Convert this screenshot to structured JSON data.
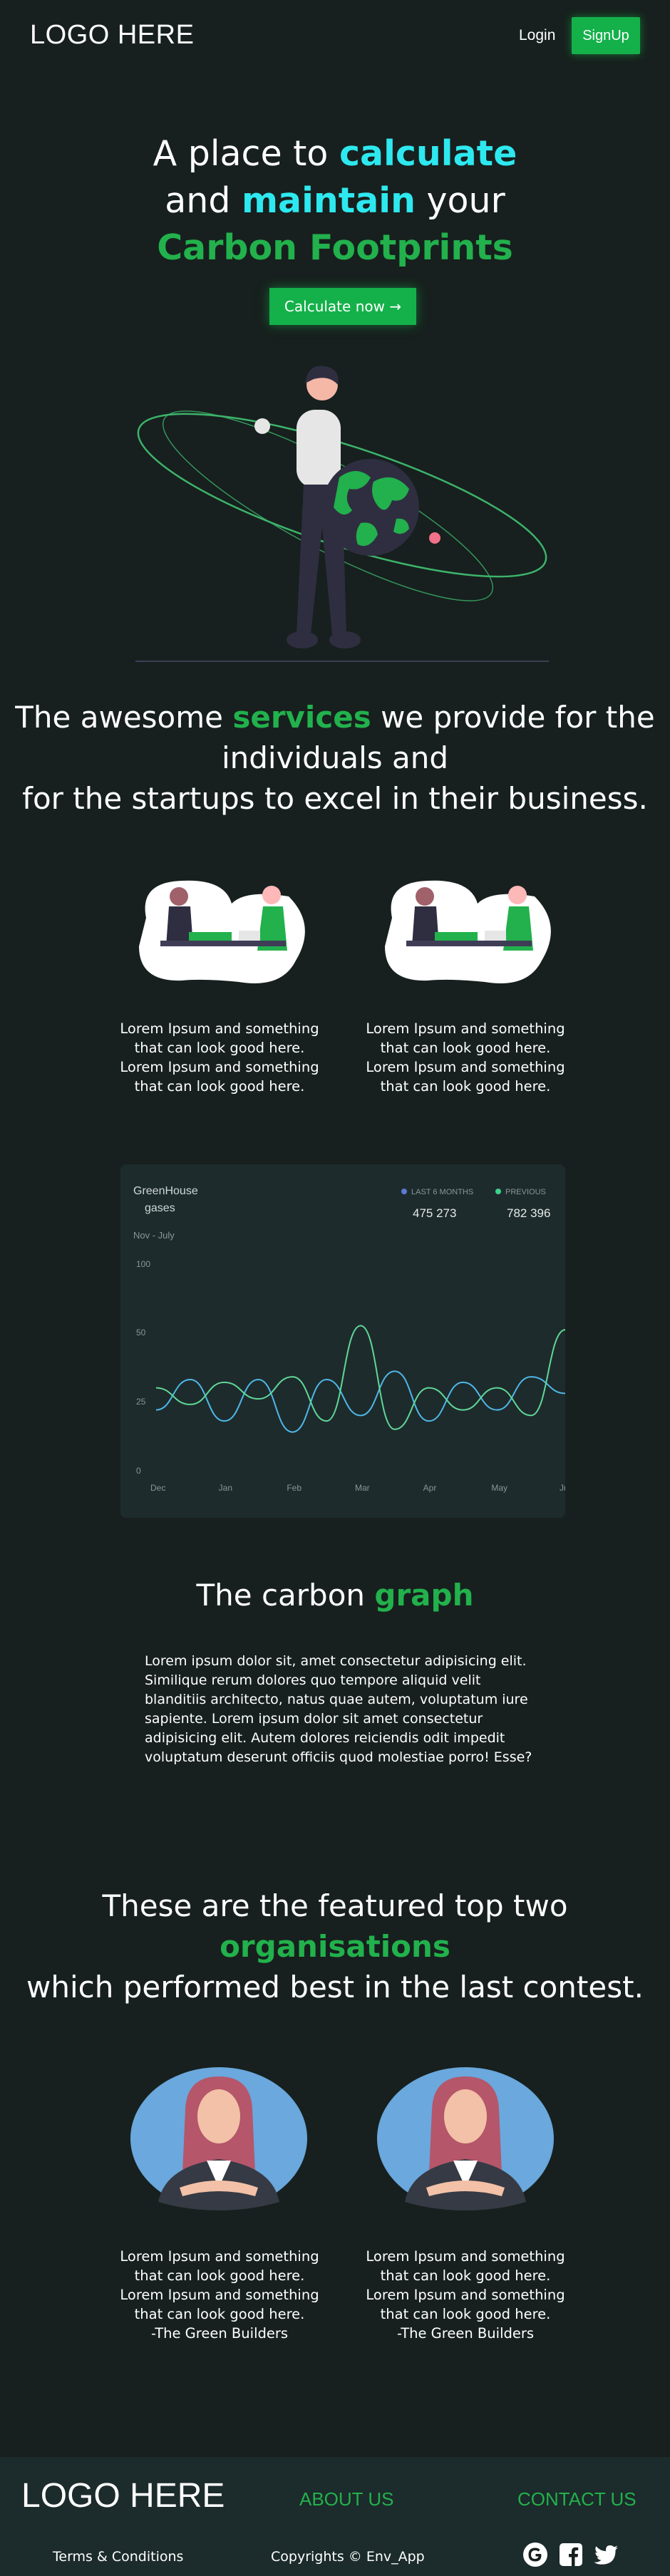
{
  "nav": {
    "logo": "LOGO HERE",
    "login": "Login",
    "signup": "SignUp"
  },
  "hero": {
    "line1_pre": "A place to ",
    "line1_hl": "calculate",
    "line2_pre": "and ",
    "line2_hl": "maintain",
    "line2_post": " your",
    "line3_hl": "Carbon Footprints",
    "cta": "Calculate now →"
  },
  "services": {
    "heading_pre": "The awesome ",
    "heading_hl": "services",
    "heading_post1": " we provide for the individuals and",
    "heading_post2": "for the startups to excel in their business.",
    "cards": [
      {
        "text": "Lorem Ipsum and something that can look good here. Lorem Ipsum and something that can look good here."
      },
      {
        "text": "Lorem Ipsum and something that can look good here. Lorem Ipsum and something that can look good here."
      }
    ]
  },
  "chart_data": {
    "type": "line",
    "title": "GreenHouse gases",
    "subtitle": "Nov - July",
    "categories": [
      "Dec",
      "Jan",
      "Feb",
      "Mar",
      "Apr",
      "May",
      "Jun"
    ],
    "yticks": [
      "100",
      "50",
      "25",
      "0"
    ],
    "ylim": [
      0,
      100
    ],
    "legend": [
      {
        "name": "LAST 6 MONTHS",
        "total": "475 273",
        "color": "#5b7bd5"
      },
      {
        "name": "PREVIOUS",
        "total": "782 396",
        "color": "#3ad28a"
      }
    ],
    "series": [
      {
        "name": "LAST 6 MONTHS",
        "color": "#4db8e8",
        "x": [
          0,
          0.5,
          1,
          1.5,
          2,
          2.5,
          3,
          3.5,
          4,
          4.5,
          5,
          5.5,
          6
        ],
        "values": [
          22,
          33,
          18,
          33,
          14,
          33,
          20,
          36,
          18,
          32,
          22,
          34,
          28
        ]
      },
      {
        "name": "PREVIOUS",
        "color": "#5fd898",
        "x": [
          0,
          0.5,
          1,
          1.5,
          2,
          2.5,
          3,
          3.5,
          4,
          4.5,
          5,
          5.5,
          6
        ],
        "values": [
          30,
          24,
          32,
          26,
          34,
          18,
          55,
          15,
          30,
          22,
          30,
          20,
          52
        ]
      }
    ]
  },
  "graph": {
    "heading_pre": "The carbon ",
    "heading_hl": "graph",
    "paragraph": "Lorem ipsum dolor sit, amet consectetur adipisicing elit. Similique rerum dolores quo tempore aliquid velit blanditiis architecto, natus quae autem, voluptatum iure sapiente. Lorem ipsum dolor sit amet consectetur adipisicing elit. Autem dolores reiciendis odit impedit voluptatum deserunt officiis quod molestiae porro! Esse?"
  },
  "organisations": {
    "heading_line1": "These are the featured top two",
    "heading_hl": "organisations",
    "heading_line3": "which performed best in the last contest.",
    "cards": [
      {
        "text": "Lorem Ipsum and something that can look good here. Lorem Ipsum and something that can look good here.",
        "signature": "-The Green Builders"
      },
      {
        "text": "Lorem Ipsum and something that can look good here. Lorem Ipsum and something that can look good here.",
        "signature": "-The Green Builders"
      }
    ]
  },
  "footer": {
    "logo": "LOGO HERE",
    "about": "ABOUT US",
    "contact": "CONTACT US",
    "terms": "Terms & Conditions",
    "copyright": "Copyrights © Env_App",
    "social_icons": [
      "google-icon",
      "facebook-icon",
      "twitter-icon"
    ]
  }
}
